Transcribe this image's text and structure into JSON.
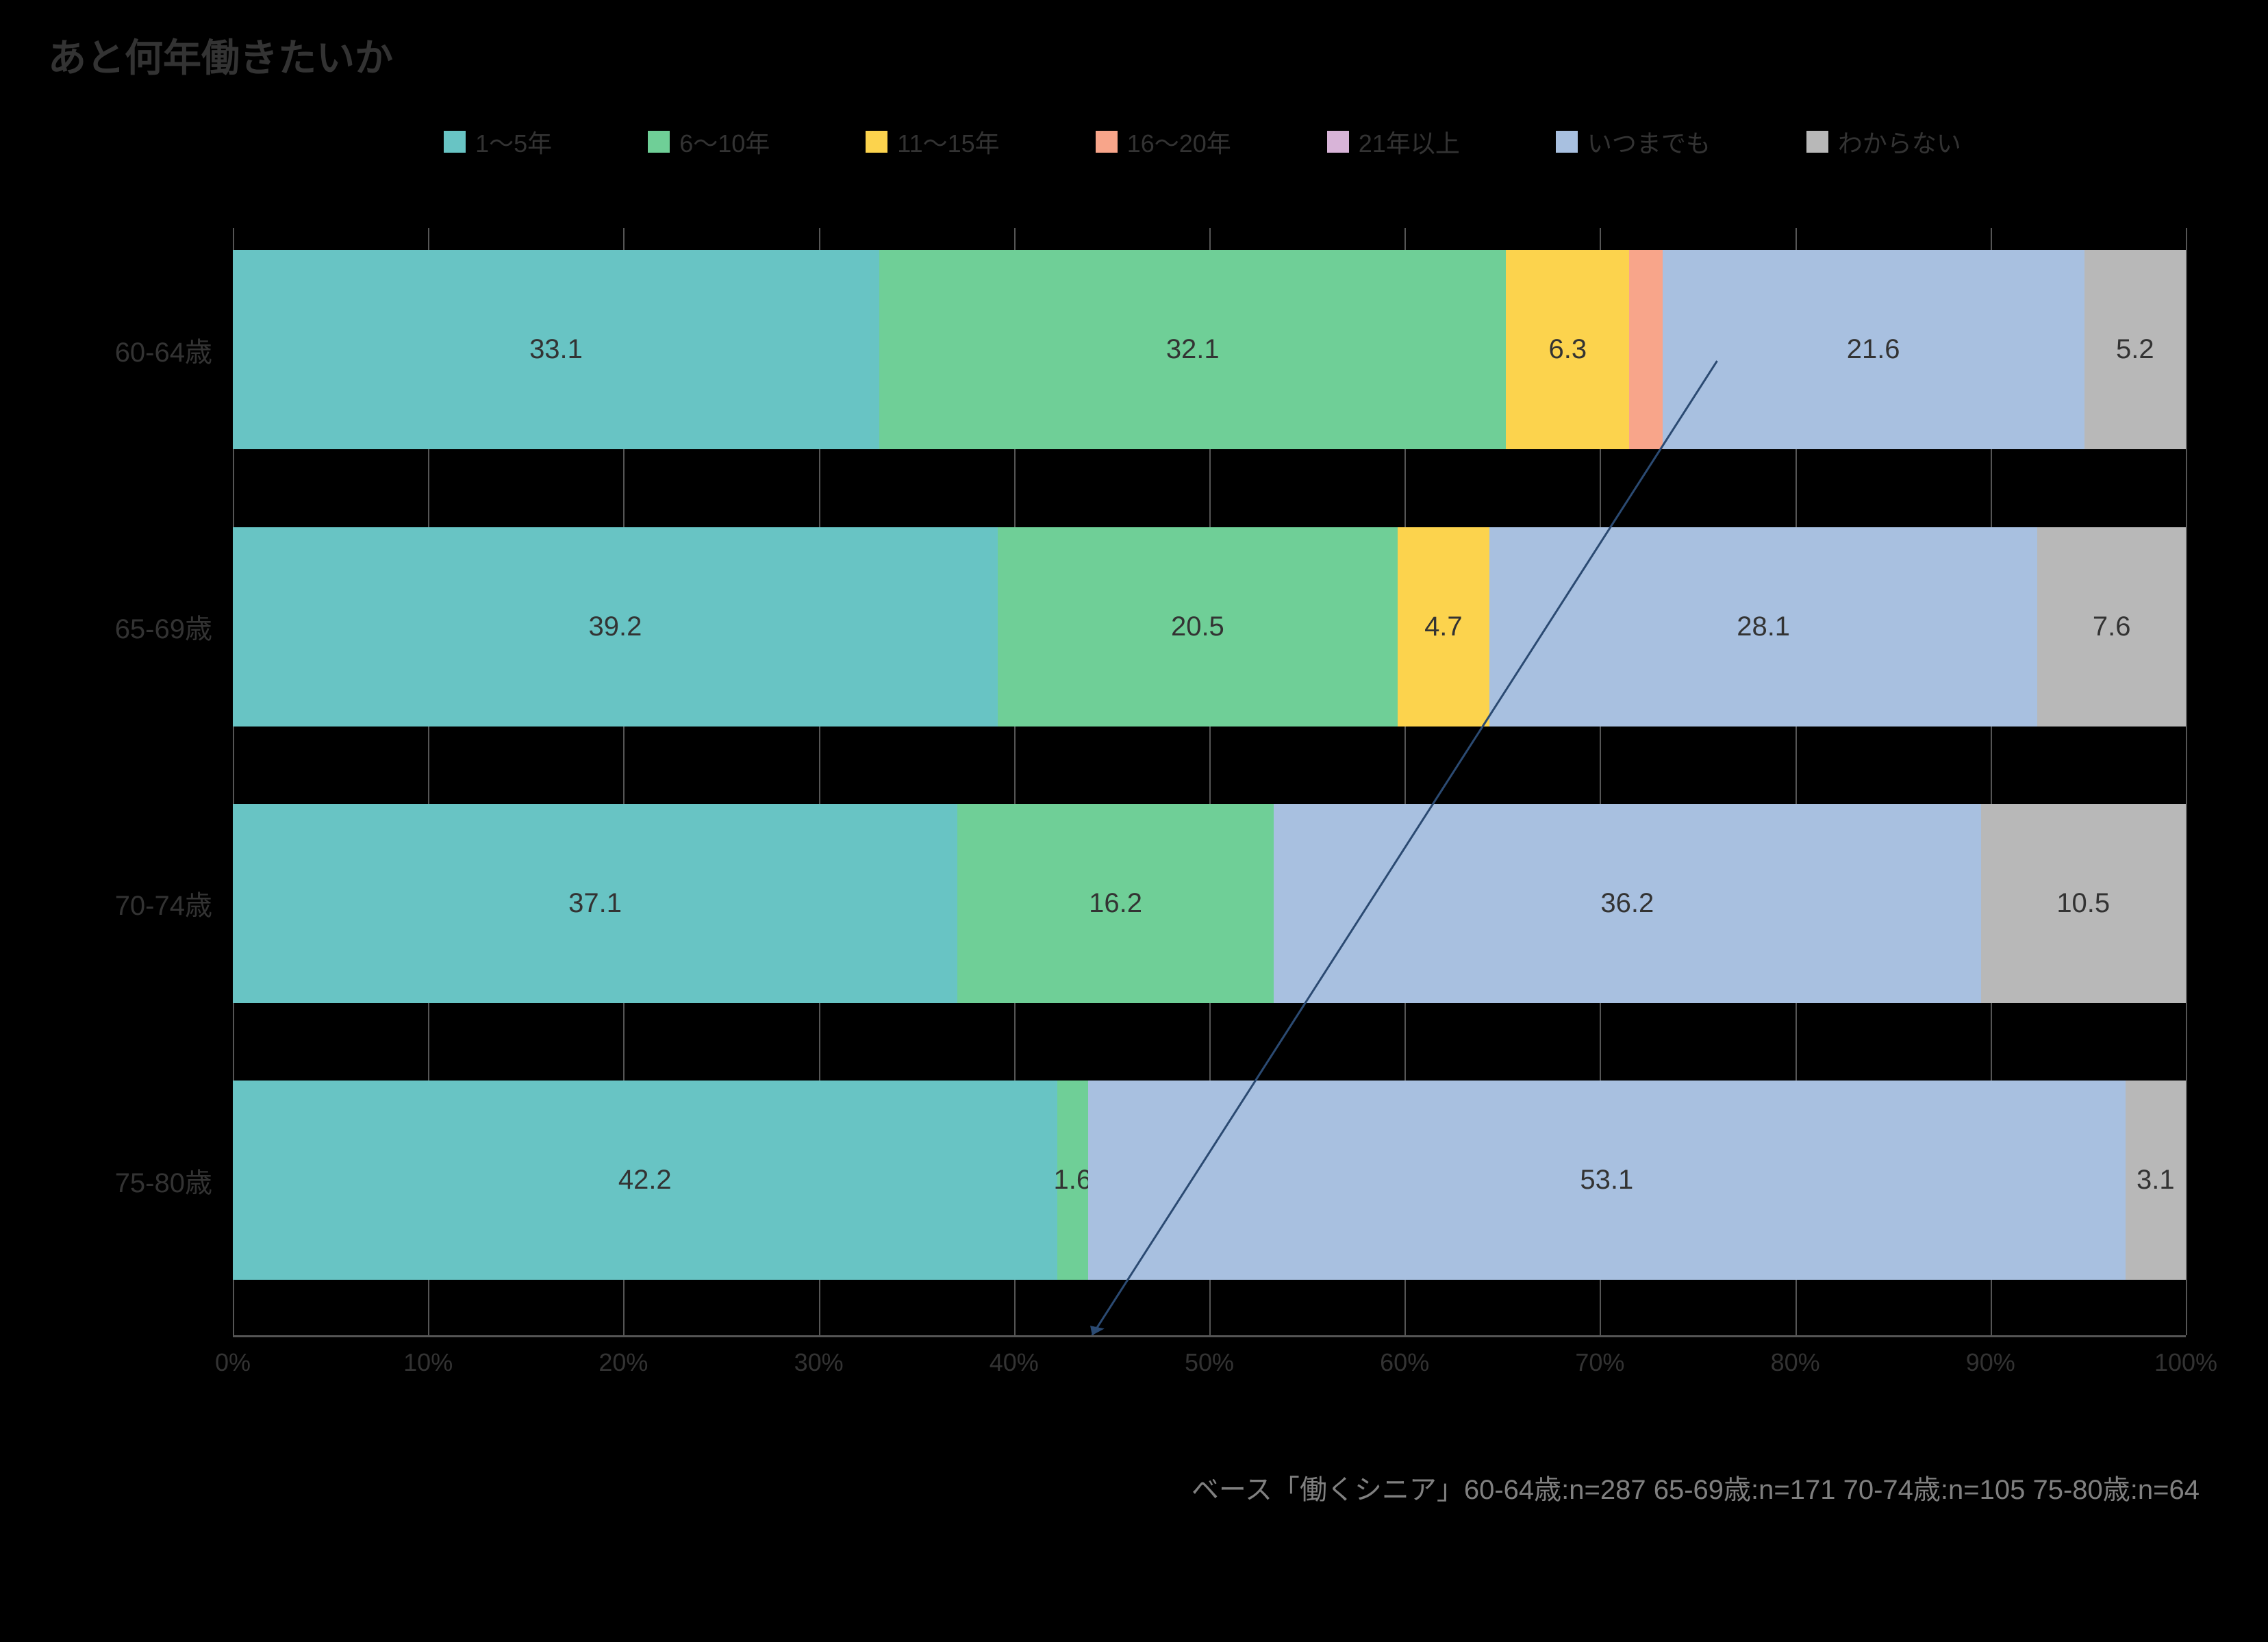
{
  "title": "あと何年働きたいか",
  "background_color": "#000000",
  "text_color": "#333333",
  "gridline_color": "#555555",
  "axis_color": "#555555",
  "legend": [
    {
      "label": "1～5年",
      "color": "#68c4c4"
    },
    {
      "label": "6～10年",
      "color": "#6fcf97"
    },
    {
      "label": "11～15年",
      "color": "#fcd34d"
    },
    {
      "label": "16～20年",
      "color": "#f8a58a"
    },
    {
      "label": "21年以上",
      "color": "#d8b4d8"
    },
    {
      "label": "いつまでも",
      "color": "#a8c0e0"
    },
    {
      "label": "わからない",
      "color": "#b8b8b8"
    }
  ],
  "chart": {
    "type": "stacked-bar-horizontal",
    "xlim": [
      0,
      100
    ],
    "xtick_step": 10,
    "xticks": [
      0,
      10,
      20,
      30,
      40,
      50,
      60,
      70,
      80,
      90,
      100
    ],
    "xtick_suffix": "%",
    "bar_height_pct": 18,
    "row_gap_pct": 7,
    "first_row_top_pct": 2,
    "categories": [
      "60-64歳",
      "65-69歳",
      "70-74歳",
      "75-80歳"
    ],
    "series": [
      {
        "name": "1～5年",
        "color": "#68c4c4",
        "values": [
          33.1,
          39.2,
          37.1,
          42.2
        ],
        "show_label": [
          true,
          true,
          true,
          true
        ]
      },
      {
        "name": "6～10年",
        "color": "#6fcf97",
        "values": [
          32.1,
          20.5,
          16.2,
          1.6
        ],
        "show_label": [
          true,
          true,
          true,
          true
        ]
      },
      {
        "name": "11～15年",
        "color": "#fcd34d",
        "values": [
          6.3,
          4.7,
          0.0,
          0.0
        ],
        "show_label": [
          true,
          true,
          false,
          false
        ]
      },
      {
        "name": "16～20年",
        "color": "#f8a58a",
        "values": [
          1.7,
          0.0,
          0.0,
          0.0
        ],
        "show_label": [
          false,
          false,
          false,
          false
        ]
      },
      {
        "name": "21年以上",
        "color": "#d8b4d8",
        "values": [
          0.0,
          0.0,
          0.0,
          0.0
        ],
        "show_label": [
          false,
          false,
          false,
          false
        ]
      },
      {
        "name": "いつまでも",
        "color": "#a8c0e0",
        "values": [
          21.6,
          28.1,
          36.2,
          53.1
        ],
        "show_label": [
          true,
          true,
          true,
          true
        ]
      },
      {
        "name": "わからない",
        "color": "#b8b8b8",
        "values": [
          5.2,
          7.6,
          10.5,
          3.1
        ],
        "show_label": [
          true,
          true,
          true,
          true
        ]
      }
    ],
    "arrow": {
      "x1_pct": 76.0,
      "y1_pct": 12.0,
      "x2_pct": 44.0,
      "y2_pct": 100.0,
      "color": "#2b4a72",
      "stroke_width": 3
    }
  },
  "footer": "ベース「働くシニア」60-64歳:n=287 65-69歳:n=171 70-74歳:n=105 75-80歳:n=64",
  "label_fontsize": 40,
  "title_fontsize": 56,
  "legend_fontsize": 36,
  "tick_fontsize": 36,
  "footer_fontsize": 40,
  "footer_color": "#808080"
}
